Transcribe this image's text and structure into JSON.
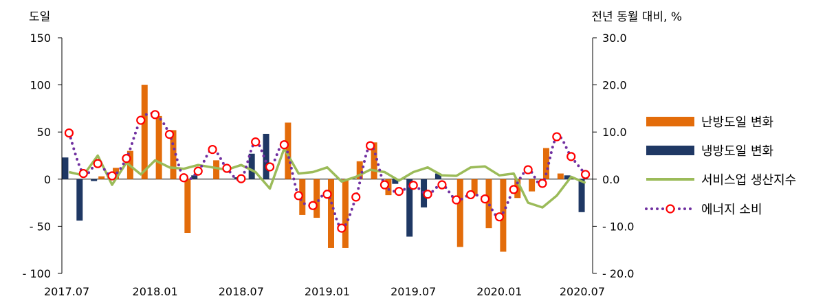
{
  "chart_data": {
    "type": "bar",
    "y_left_label": "도일",
    "y_right_label": "전년 동월 대비, %",
    "ylim_left": [
      -100,
      150
    ],
    "ylim_right": [
      -20,
      30
    ],
    "y_left_ticks": [
      150,
      100,
      50,
      0,
      -50,
      -100
    ],
    "y_left_tick_labels": [
      "150",
      "100",
      "50",
      "0",
      "- 50",
      "- 100"
    ],
    "y_right_ticks": [
      30,
      20,
      10,
      0,
      -10,
      -20
    ],
    "y_right_tick_labels": [
      "30.0",
      "20.0",
      "10.0",
      "0.0",
      "- 10.0",
      "- 20.0"
    ],
    "x_tick_labels": [
      {
        "index": 0,
        "label": "2017.07"
      },
      {
        "index": 6,
        "label": "2018.01"
      },
      {
        "index": 12,
        "label": "2018.07"
      },
      {
        "index": 18,
        "label": "2019.01"
      },
      {
        "index": 24,
        "label": "2019.07"
      },
      {
        "index": 30,
        "label": "2020.01"
      },
      {
        "index": 36,
        "label": "2020.07"
      }
    ],
    "categories": [
      "2017.07",
      "2017.08",
      "2017.09",
      "2017.10",
      "2017.11",
      "2017.12",
      "2018.01",
      "2018.02",
      "2018.03",
      "2018.04",
      "2018.05",
      "2018.06",
      "2018.07",
      "2018.08",
      "2018.09",
      "2018.10",
      "2018.11",
      "2018.12",
      "2019.01",
      "2019.02",
      "2019.03",
      "2019.04",
      "2019.05",
      "2019.06",
      "2019.07",
      "2019.08",
      "2019.09",
      "2019.10",
      "2019.11",
      "2019.12",
      "2020.01",
      "2020.02",
      "2020.03",
      "2020.04",
      "2020.05",
      "2020.06",
      "2020.07"
    ],
    "series": [
      {
        "name": "난방도일 변화",
        "kind": "bar",
        "axis": "left",
        "color": "#E36C0A",
        "values": [
          0,
          0,
          3,
          12,
          30,
          100,
          67,
          52,
          -57,
          0,
          20,
          0,
          0,
          0,
          0,
          60,
          -38,
          -41,
          -73,
          -73,
          19,
          39,
          -17,
          0,
          0,
          0,
          0,
          -72,
          -18,
          -52,
          -77,
          -20,
          -13,
          33,
          6,
          0,
          0
        ]
      },
      {
        "name": "냉방도일 변화",
        "kind": "bar",
        "axis": "left",
        "color": "#1F3864",
        "values": [
          23,
          -44,
          -2,
          0,
          0,
          0,
          0,
          0,
          0,
          4,
          0,
          0,
          2,
          27,
          48,
          0,
          0,
          0,
          0,
          0,
          0,
          0,
          0,
          -5,
          -61,
          -30,
          6,
          0,
          0,
          0,
          0,
          0,
          0,
          0,
          0,
          4,
          -35
        ]
      },
      {
        "name": "서비스업 생산지수",
        "kind": "line",
        "axis": "right",
        "color": "#9BBB59",
        "values": [
          1.5,
          0.8,
          5.0,
          -1.2,
          3.5,
          1.0,
          4.0,
          2.5,
          2.2,
          3.0,
          2.5,
          2.0,
          3.0,
          1.5,
          -2.0,
          6.5,
          1.2,
          1.5,
          2.5,
          -0.5,
          0.5,
          2.0,
          1.5,
          -0.3,
          1.5,
          2.5,
          0.8,
          0.7,
          2.5,
          2.7,
          0.8,
          1.2,
          -5.0,
          -6.0,
          -3.5,
          0.5,
          -0.8
        ]
      },
      {
        "name": "에너지 소비",
        "kind": "line-markers",
        "axis": "right",
        "color": "#7030A0",
        "marker_edge": "#FF0000",
        "values": [
          9.8,
          1.2,
          3.3,
          0.7,
          4.4,
          12.5,
          13.7,
          9.5,
          0.3,
          1.7,
          6.3,
          2.3,
          0.1,
          7.9,
          2.6,
          7.3,
          -3.5,
          -5.6,
          -3.2,
          -10.4,
          -3.8,
          7.1,
          -1.2,
          -2.6,
          -1.3,
          -3.2,
          -1.2,
          -4.4,
          -3.3,
          -4.2,
          -8.0,
          -2.2,
          2.0,
          -0.9,
          9.0,
          4.8,
          1.0
        ]
      }
    ],
    "legend_position": "right",
    "legend": [
      {
        "label": "난방도일 변화",
        "kind": "bar",
        "color": "#E36C0A"
      },
      {
        "label": "냉방도일 변화",
        "kind": "bar",
        "color": "#1F3864"
      },
      {
        "label": "서비스업 생산지수",
        "kind": "line",
        "color": "#9BBB59"
      },
      {
        "label": "에너지 소비",
        "kind": "dotted-marker",
        "color": "#7030A0",
        "marker_edge": "#FF0000"
      }
    ],
    "grid": false
  }
}
